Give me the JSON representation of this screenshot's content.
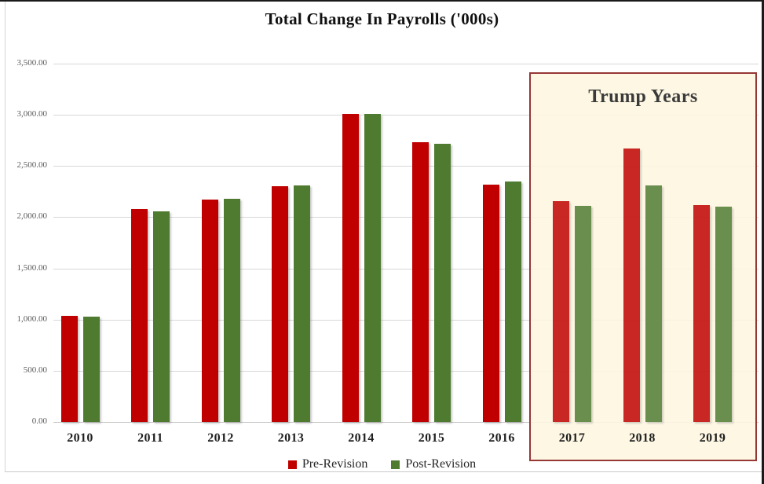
{
  "chart_data": {
    "type": "bar",
    "title": "Total Change In Payrolls ('000s)",
    "categories": [
      "2010",
      "2011",
      "2012",
      "2013",
      "2014",
      "2015",
      "2016",
      "2017",
      "2018",
      "2019"
    ],
    "series": [
      {
        "name": "Pre-Revision",
        "color": "#C00000",
        "values": [
          1035,
          2080,
          2170,
          2305,
          3010,
          2735,
          2315,
          2155,
          2670,
          2120
        ]
      },
      {
        "name": "Post-Revision",
        "color": "#4F7B31",
        "values": [
          1030,
          2060,
          2180,
          2310,
          3005,
          2720,
          2345,
          2110,
          2310,
          2105
        ]
      }
    ],
    "ylim": [
      0,
      3500
    ],
    "ytick_step": 500,
    "ytick_labels": [
      "0.00",
      "500.00",
      "1,000.00",
      "1,500.00",
      "2,000.00",
      "2,500.00",
      "3,000.00",
      "3,500.00"
    ],
    "grid": true,
    "legend_position": "bottom",
    "annotation": {
      "label": "Trump Years",
      "start_category": "2017",
      "end_category": "2019",
      "fill_color": "#FDF6DF",
      "border_color": "#953735"
    }
  }
}
